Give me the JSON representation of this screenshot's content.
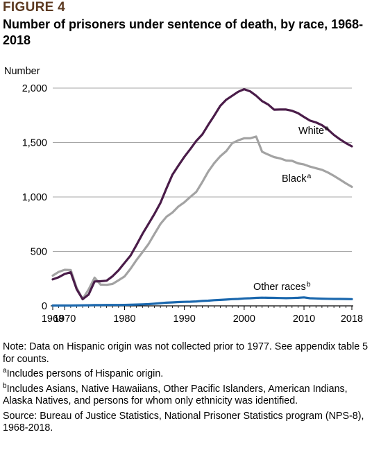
{
  "figure_label": "FIGURE 4",
  "title": "Number of prisoners under sentence of death, by race, 1968-2018",
  "colors": {
    "white": "#4a1c49",
    "black": "#a3a3a3",
    "other": "#1a67ad",
    "figure_label": "#5c3a21"
  },
  "chart_data": {
    "type": "line",
    "title": "Number of prisoners under sentence of death, by race, 1968-2018",
    "xlabel": "",
    "ylabel": "Number",
    "xlim": [
      1968,
      2018
    ],
    "ylim": [
      0,
      2000
    ],
    "yticks": [
      0,
      500,
      1000,
      1500,
      2000
    ],
    "ytick_labels": [
      "0",
      "500",
      "1,000",
      "1,500",
      "2,000"
    ],
    "xticks": [
      1968,
      1970,
      1980,
      1990,
      2000,
      2010,
      2018
    ],
    "xtick_labels": [
      "1968",
      "1970",
      "1980",
      "1990",
      "2000",
      "2010",
      "2018"
    ],
    "grid": true,
    "legend": "inline",
    "x": [
      1968,
      1969,
      1970,
      1971,
      1972,
      1973,
      1974,
      1975,
      1976,
      1977,
      1978,
      1979,
      1980,
      1981,
      1982,
      1983,
      1984,
      1985,
      1986,
      1987,
      1988,
      1989,
      1990,
      1991,
      1992,
      1993,
      1994,
      1995,
      1996,
      1997,
      1998,
      1999,
      2000,
      2001,
      2002,
      2003,
      2004,
      2005,
      2006,
      2007,
      2008,
      2009,
      2010,
      2011,
      2012,
      2013,
      2014,
      2015,
      2016,
      2017,
      2018
    ],
    "series": [
      {
        "name": "White",
        "superscript": "a",
        "values": [
          243,
          263,
          293,
          308,
          152,
          61,
          104,
          224,
          226,
          231,
          272,
          327,
          394,
          462,
          559,
          661,
          752,
          844,
          946,
          1078,
          1204,
          1287,
          1368,
          1441,
          1515,
          1574,
          1663,
          1747,
          1837,
          1893,
          1929,
          1966,
          1990,
          1970,
          1930,
          1880,
          1850,
          1802,
          1803,
          1803,
          1792,
          1770,
          1735,
          1701,
          1685,
          1660,
          1620,
          1570,
          1530,
          1495,
          1465
        ]
      },
      {
        "name": "Black",
        "superscript": "a",
        "values": [
          278,
          312,
          331,
          329,
          165,
          64,
          150,
          259,
          195,
          193,
          201,
          235,
          270,
          341,
          421,
          493,
          567,
          660,
          752,
          818,
          857,
          912,
          951,
          1001,
          1047,
          1137,
          1234,
          1311,
          1374,
          1421,
          1494,
          1520,
          1539,
          1539,
          1555,
          1415,
          1390,
          1366,
          1354,
          1335,
          1332,
          1309,
          1299,
          1279,
          1264,
          1250,
          1225,
          1194,
          1160,
          1125,
          1093
        ]
      },
      {
        "name": "Other races",
        "superscript": "b",
        "values": [
          3,
          3,
          3,
          3,
          4,
          5,
          6,
          7,
          7,
          8,
          8,
          8,
          9,
          10,
          12,
          14,
          16,
          20,
          25,
          29,
          32,
          35,
          37,
          38,
          41,
          45,
          48,
          52,
          55,
          58,
          62,
          64,
          68,
          70,
          73,
          75,
          74,
          73,
          72,
          71,
          72,
          74,
          78,
          70,
          68,
          66,
          65,
          64,
          64,
          63,
          62
        ]
      }
    ]
  },
  "notes": {
    "note": "Note: Data on Hispanic origin was not collected prior to 1977. See appendix table 5 for counts.",
    "footnote_a_mark": "a",
    "footnote_a": "Includes persons of Hispanic origin.",
    "footnote_b_mark": "b",
    "footnote_b": "Includes Asians, Native Hawaiians, Other Pacific Islanders, American Indians, Alaska Natives, and persons for whom only ethnicity was identified.",
    "source": "Source: Bureau of Justice Statistics, National Prisoner Statistics program (NPS-8), 1968-2018."
  }
}
